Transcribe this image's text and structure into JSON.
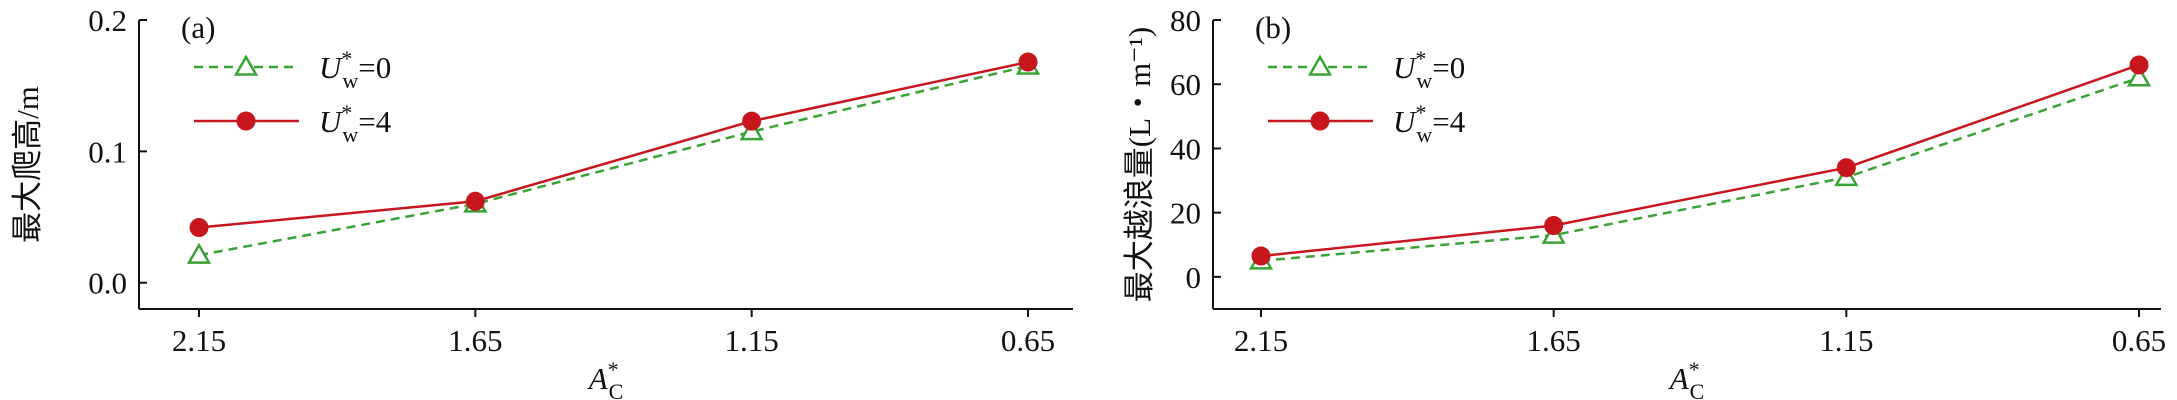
{
  "chart_data": [
    {
      "type": "line",
      "title": "(a)",
      "y_label": "最大爬高/m",
      "x_label": [
        "A",
        "*",
        "C"
      ],
      "categories": [
        "2.15",
        "1.65",
        "1.15",
        "0.65"
      ],
      "series": [
        {
          "name": [
            "U",
            "*",
            "w",
            "=0"
          ],
          "color": "#3aa335",
          "values": [
            0.021,
            0.06,
            0.115,
            0.165
          ]
        },
        {
          "name": [
            "U",
            "*",
            "w",
            "=4"
          ],
          "color": "#c8161e",
          "values": [
            0.042,
            0.062,
            0.123,
            0.168
          ]
        }
      ],
      "ylim": [
        -0.02,
        0.2
      ],
      "yticks": [
        {
          "value": 0,
          "label": "0.0"
        },
        0.1,
        0.2
      ]
    },
    {
      "type": "line",
      "title": "(b)",
      "y_label": "最大越浪量(L・m⁻¹)",
      "x_label": [
        "A",
        "*",
        "C"
      ],
      "categories": [
        "2.15",
        "1.65",
        "1.15",
        "0.65"
      ],
      "series": [
        {
          "name": [
            "U",
            "*",
            "w",
            "=0"
          ],
          "color": "#3aa335",
          "values": [
            5,
            13,
            31,
            62
          ]
        },
        {
          "name": [
            "U",
            "*",
            "w",
            "=4"
          ],
          "color": "#c8161e",
          "values": [
            6.5,
            16,
            34,
            66
          ]
        }
      ],
      "ylim": [
        -10,
        80
      ],
      "yticks": [
        0,
        20,
        40,
        60,
        80
      ]
    }
  ]
}
